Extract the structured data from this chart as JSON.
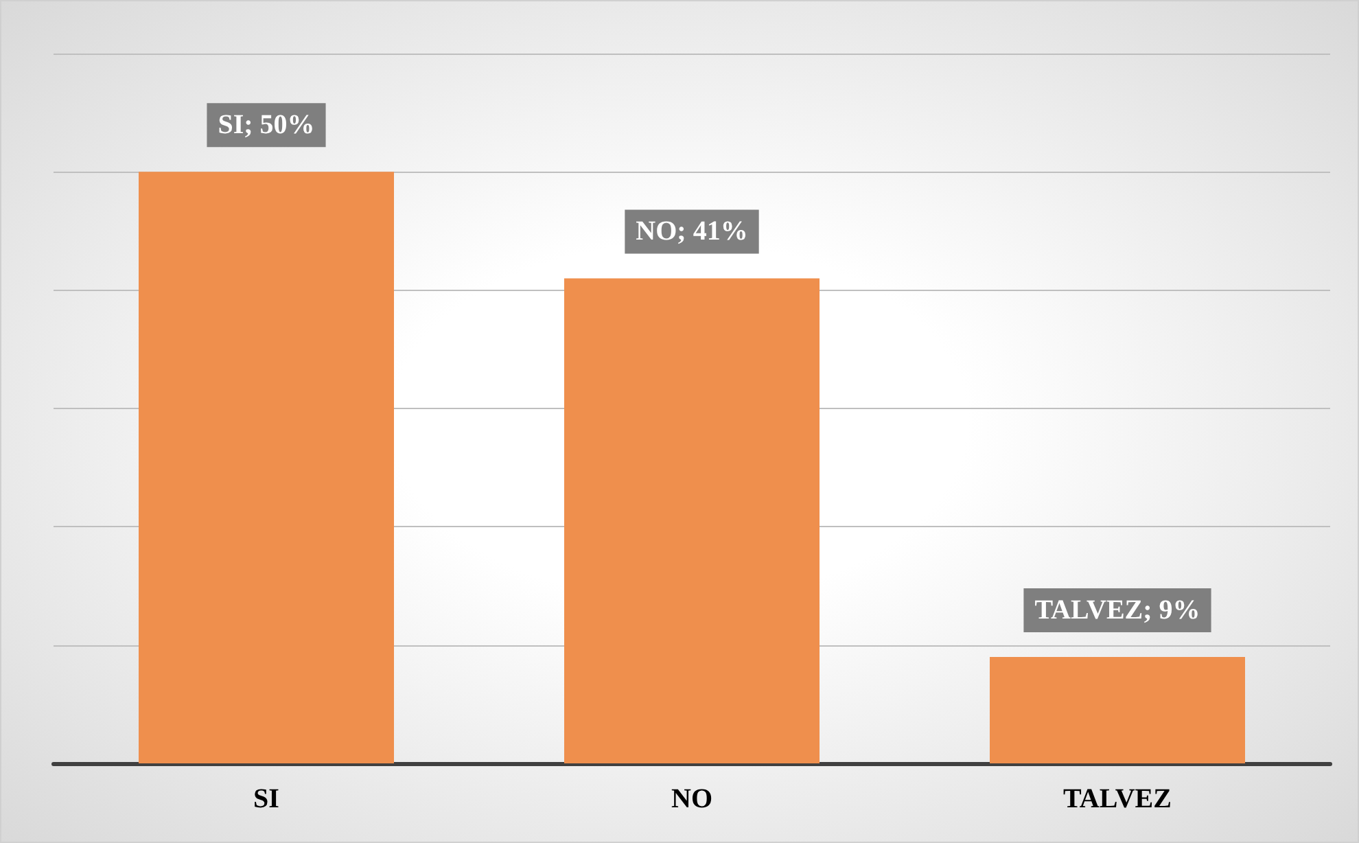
{
  "chart_data": {
    "type": "bar",
    "categories": [
      "SI",
      "NO",
      "TALVEZ"
    ],
    "values": [
      50,
      41,
      9
    ],
    "color": "#ef8f4d",
    "value_labels": [
      "SI; 50%",
      "NO; 41%",
      "TALVEZ; 9%"
    ],
    "ylim": [
      0,
      60
    ],
    "yticks": [
      {
        "value": 0,
        "label": null
      },
      {
        "value": 10,
        "label": null
      },
      {
        "value": 20,
        "label": null
      },
      {
        "value": 30,
        "label": null
      },
      {
        "value": 40,
        "label": null
      },
      {
        "value": 50,
        "label": null
      },
      {
        "value": 60,
        "label": null
      }
    ],
    "grid": "y",
    "tick_labels": "x"
  }
}
